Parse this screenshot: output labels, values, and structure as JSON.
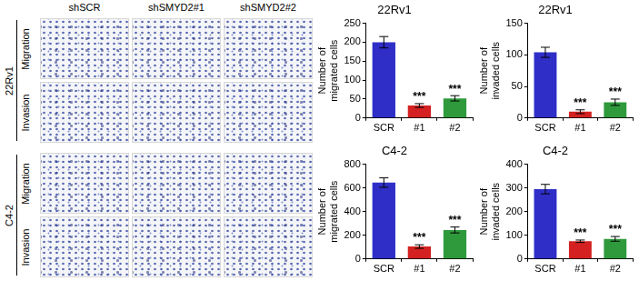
{
  "image_panel": {
    "columns": [
      "shSCR",
      "shSMYD2#1",
      "shSMYD2#2"
    ],
    "cell_lines": [
      {
        "name": "22Rv1",
        "rows": [
          "Migration",
          "Invasion"
        ]
      },
      {
        "name": "C4-2",
        "rows": [
          "Migration",
          "Invasion"
        ]
      }
    ]
  },
  "chart_data": [
    {
      "type": "bar",
      "title": "22Rv1",
      "y_label": "Number of migrated cells",
      "categories": [
        "SCR",
        "#1",
        "#2"
      ],
      "values": [
        200,
        33,
        52
      ],
      "errors": [
        15,
        5,
        7
      ],
      "colors": [
        "#2f2fc8",
        "#d42020",
        "#2e9a3c"
      ],
      "ylim": [
        0,
        250
      ],
      "yticks": [
        0,
        50,
        100,
        150,
        200,
        250
      ],
      "grid": false,
      "annotations": [
        {
          "category": "#1",
          "text": "***"
        },
        {
          "category": "#2",
          "text": "***"
        }
      ]
    },
    {
      "type": "bar",
      "title": "22Rv1",
      "y_label": "Number of invaded cells",
      "categories": [
        "SCR",
        "#1",
        "#2"
      ],
      "values": [
        104,
        10,
        25
      ],
      "errors": [
        8,
        3,
        5
      ],
      "colors": [
        "#2f2fc8",
        "#d42020",
        "#2e9a3c"
      ],
      "ylim": [
        0,
        150
      ],
      "yticks": [
        0,
        50,
        100,
        150
      ],
      "grid": false,
      "annotations": [
        {
          "category": "#1",
          "text": "***"
        },
        {
          "category": "#2",
          "text": "***"
        }
      ]
    },
    {
      "type": "bar",
      "title": "C4-2",
      "y_label": "Number of migrated cells",
      "categories": [
        "SCR",
        "#1",
        "#2"
      ],
      "values": [
        645,
        105,
        245
      ],
      "errors": [
        40,
        15,
        25
      ],
      "colors": [
        "#2f2fc8",
        "#d42020",
        "#2e9a3c"
      ],
      "ylim": [
        0,
        800
      ],
      "yticks": [
        0,
        200,
        400,
        600,
        800
      ],
      "grid": false,
      "annotations": [
        {
          "category": "#1",
          "text": "***"
        },
        {
          "category": "#2",
          "text": "***"
        }
      ]
    },
    {
      "type": "bar",
      "title": "C4-2",
      "y_label": "Number of invaded cells",
      "categories": [
        "SCR",
        "#1",
        "#2"
      ],
      "values": [
        295,
        75,
        85
      ],
      "errors": [
        20,
        5,
        10
      ],
      "colors": [
        "#2f2fc8",
        "#d42020",
        "#2e9a3c"
      ],
      "ylim": [
        0,
        400
      ],
      "yticks": [
        0,
        100,
        200,
        300,
        400
      ],
      "grid": false,
      "annotations": [
        {
          "category": "#1",
          "text": "***"
        },
        {
          "category": "#2",
          "text": "***"
        }
      ]
    }
  ]
}
